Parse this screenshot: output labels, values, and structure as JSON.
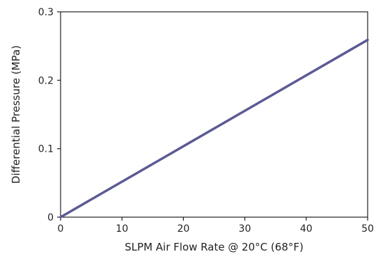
{
  "chart_data": {
    "type": "line",
    "title": "",
    "xlabel": "SLPM Air Flow Rate @ 20°C (68°F)",
    "ylabel": "Differential Pressure (MPa)",
    "xlim": [
      0,
      50
    ],
    "ylim": [
      0,
      0.3
    ],
    "xticks": [
      0,
      10,
      20,
      30,
      40,
      50
    ],
    "xtick_labels": [
      "0",
      "10",
      "20",
      "30",
      "40",
      "50"
    ],
    "yticks": [
      0,
      0.1,
      0.2,
      0.3
    ],
    "ytick_labels": [
      "0",
      "0.1",
      "0.2",
      "0.3"
    ],
    "grid": false,
    "legend": "none",
    "series": [
      {
        "x": [
          0,
          50
        ],
        "y": [
          0,
          0.259
        ]
      }
    ],
    "colors": {
      "line": "#5b5a94",
      "axis": "#231f20"
    }
  }
}
